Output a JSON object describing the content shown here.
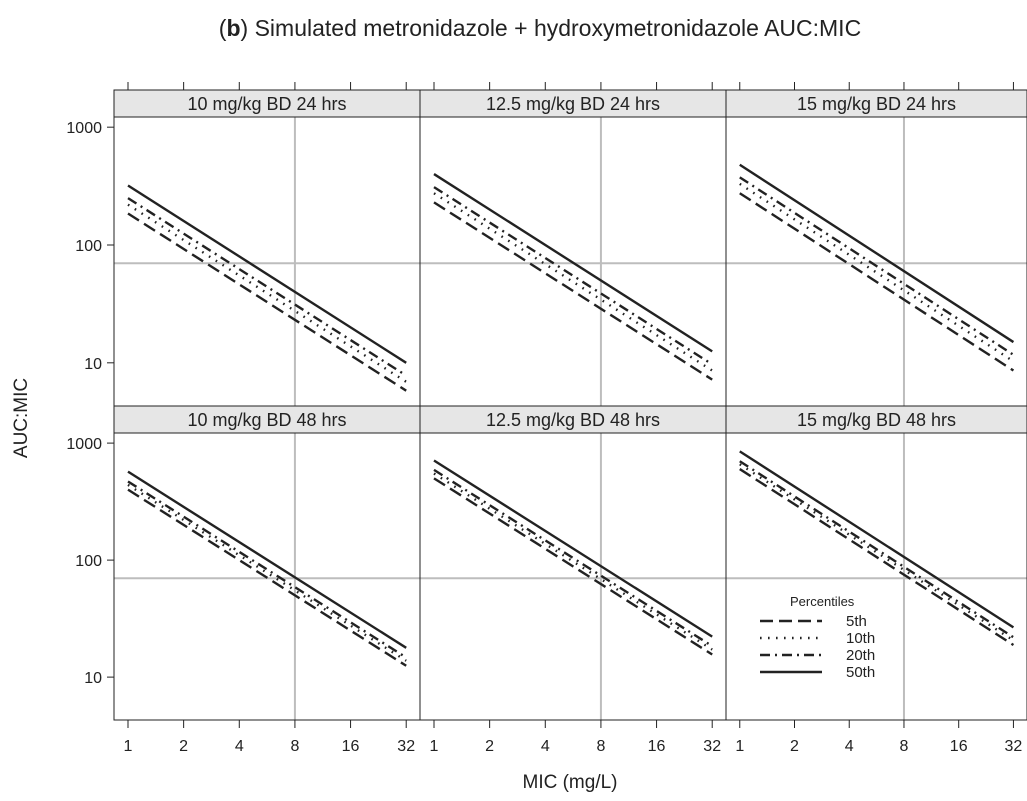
{
  "chart_data": {
    "type": "line",
    "title_bold": "b",
    "title_text": " Simulated metronidazole + hydroxymetronidazole AUC:MIC",
    "xlabel": "MIC (mg/L)",
    "ylabel": "AUC:MIC",
    "x_scale": "log2",
    "y_scale": "log10",
    "x_ticks": [
      1,
      2,
      4,
      8,
      16,
      32
    ],
    "x_tick_labels": [
      "1",
      "2",
      "4",
      "8",
      "16",
      "32"
    ],
    "y_ticks": [
      10,
      100,
      1000
    ],
    "y_tick_labels": [
      "10",
      "100",
      "1000"
    ],
    "ylim": [
      4.3,
      1220
    ],
    "xlim": [
      0.84,
      38
    ],
    "reference_lines": {
      "x": 8,
      "y": 70
    },
    "grid": false,
    "legend": {
      "title": "Percentiles",
      "placement": "bottom-right panel",
      "entries": [
        {
          "label": "5th",
          "style": "dashed"
        },
        {
          "label": "10th",
          "style": "dotted"
        },
        {
          "label": "20th",
          "style": "dash-dot"
        },
        {
          "label": "50th",
          "style": "solid"
        }
      ]
    },
    "x": [
      1,
      32
    ],
    "panels": [
      {
        "label": "10 mg/kg BD 24 hrs",
        "series": [
          {
            "name": "5th",
            "style": "dashed",
            "values": [
              185,
              5.8
            ]
          },
          {
            "name": "10th",
            "style": "dotted",
            "values": [
              220,
              6.9
            ]
          },
          {
            "name": "20th",
            "style": "dash-dot",
            "values": [
              250,
              7.8
            ]
          },
          {
            "name": "50th",
            "style": "solid",
            "values": [
              320,
              10
            ]
          }
        ]
      },
      {
        "label": "12.5 mg/kg BD 24 hrs",
        "series": [
          {
            "name": "5th",
            "style": "dashed",
            "values": [
              230,
              7.2
            ]
          },
          {
            "name": "10th",
            "style": "dotted",
            "values": [
              275,
              8.6
            ]
          },
          {
            "name": "20th",
            "style": "dash-dot",
            "values": [
              310,
              9.7
            ]
          },
          {
            "name": "50th",
            "style": "solid",
            "values": [
              400,
              12.5
            ]
          }
        ]
      },
      {
        "label": "15 mg/kg BD 24 hrs",
        "series": [
          {
            "name": "5th",
            "style": "dashed",
            "values": [
              275,
              8.6
            ]
          },
          {
            "name": "10th",
            "style": "dotted",
            "values": [
              330,
              10.3
            ]
          },
          {
            "name": "20th",
            "style": "dash-dot",
            "values": [
              375,
              11.7
            ]
          },
          {
            "name": "50th",
            "style": "solid",
            "values": [
              480,
              15
            ]
          }
        ]
      },
      {
        "label": "10 mg/kg BD 48 hrs",
        "series": [
          {
            "name": "5th",
            "style": "dashed",
            "values": [
              400,
              12.5
            ]
          },
          {
            "name": "10th",
            "style": "dotted",
            "values": [
              440,
              13.8
            ]
          },
          {
            "name": "20th",
            "style": "dash-dot",
            "values": [
              470,
              14.7
            ]
          },
          {
            "name": "50th",
            "style": "solid",
            "values": [
              570,
              17.8
            ]
          }
        ]
      },
      {
        "label": "12.5 mg/kg BD 48 hrs",
        "series": [
          {
            "name": "5th",
            "style": "dashed",
            "values": [
              500,
              15.6
            ]
          },
          {
            "name": "10th",
            "style": "dotted",
            "values": [
              550,
              17.2
            ]
          },
          {
            "name": "20th",
            "style": "dash-dot",
            "values": [
              590,
              18.4
            ]
          },
          {
            "name": "50th",
            "style": "solid",
            "values": [
              710,
              22.2
            ]
          }
        ]
      },
      {
        "label": "15 mg/kg BD 48 hrs",
        "series": [
          {
            "name": "5th",
            "style": "dashed",
            "values": [
              600,
              18.8
            ]
          },
          {
            "name": "10th",
            "style": "dotted",
            "values": [
              660,
              20.6
            ]
          },
          {
            "name": "20th",
            "style": "dash-dot",
            "values": [
              700,
              21.9
            ]
          },
          {
            "name": "50th",
            "style": "solid",
            "values": [
              850,
              26.6
            ]
          }
        ]
      }
    ]
  }
}
